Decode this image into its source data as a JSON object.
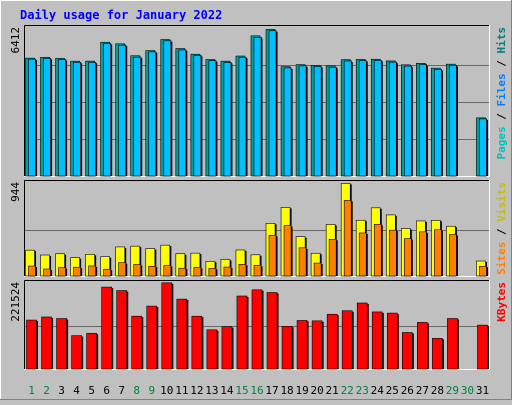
{
  "chart_data": {
    "type": "bar",
    "title": "Daily usage for January 2022",
    "categories": [
      "1",
      "2",
      "3",
      "4",
      "5",
      "6",
      "7",
      "8",
      "9",
      "10",
      "11",
      "12",
      "13",
      "14",
      "15",
      "16",
      "17",
      "18",
      "19",
      "20",
      "21",
      "22",
      "23",
      "24",
      "25",
      "26",
      "27",
      "28",
      "29",
      "30",
      "31"
    ],
    "weekend_categories": [
      "1",
      "2",
      "8",
      "9",
      "15",
      "16",
      "22",
      "23",
      "29",
      "30"
    ],
    "panels": [
      {
        "id": "top",
        "ymax_label": "6412",
        "ymax": 6412,
        "legend": [
          "Pages",
          "Files",
          "Hits"
        ],
        "series": [
          {
            "name": "Hits",
            "color": "#00a0a0",
            "values": [
              5106,
              5144,
              5095,
              4975,
              4977,
              5796,
              5727,
              5209,
              5432,
              5913,
              5522,
              5278,
              5045,
              4976,
              5197,
              6073,
              6351,
              4737,
              4826,
              4796,
              4771,
              5040,
              5049,
              5058,
              4984,
              4817,
              4883,
              4672,
              4845,
              0,
              2520
            ]
          },
          {
            "name": "Files",
            "color": "#00c0ff",
            "values": [
              5061,
              5094,
              5044,
              4922,
              4926,
              5742,
              5668,
              5148,
              5378,
              5856,
              5461,
              5226,
              4995,
              4917,
              5144,
              6007,
              6291,
              4682,
              4771,
              4743,
              4714,
              4983,
              4999,
              5011,
              4933,
              4763,
              4822,
              4619,
              4790,
              0,
              2474
            ]
          }
        ]
      },
      {
        "id": "middle",
        "ymax_label": "944",
        "ymax": 944,
        "legend": [
          "Sites",
          "Visits"
        ],
        "series": [
          {
            "name": "Visits",
            "color": "#ffff00",
            "values": [
              262,
              213,
              226,
              186,
              220,
              196,
              295,
              303,
              278,
              313,
              226,
              232,
              149,
              168,
              264,
              215,
              535,
              697,
              399,
              231,
              523,
              940,
              566,
              692,
              620,
              482,
              559,
              565,
              505,
              0,
              152
            ]
          },
          {
            "name": "Sites",
            "color": "#ff8000",
            "values": [
              101,
              71,
              85,
              89,
              102,
              68,
              136,
              116,
              99,
              106,
              79,
              87,
              77,
              91,
              118,
              108,
              413,
              511,
              286,
              131,
              372,
              767,
              437,
              524,
              465,
              379,
              448,
              469,
              421,
              0,
              99
            ]
          }
        ]
      },
      {
        "id": "bottom",
        "ymax_label": "221524",
        "ymax": 221524,
        "legend": [
          "KBytes"
        ],
        "series": [
          {
            "name": "KBytes",
            "color": "#ff0000",
            "values": [
              126000,
              134000,
              130000,
              86000,
              92000,
              211000,
              202000,
              136000,
              162000,
              222000,
              180000,
              136000,
              101000,
              109000,
              188000,
              204000,
              197000,
              110000,
              125000,
              124000,
              141000,
              150000,
              170000,
              147000,
              144000,
              94000,
              120000,
              79000,
              130000,
              0,
              113000
            ]
          }
        ]
      }
    ],
    "colors": {
      "background": "#c0c0c0",
      "title": "#0000ff",
      "pages": "#00c0c0",
      "files": "#0080ff",
      "hits": "#008080",
      "sites": "#ff8000",
      "visits": "#c0c000",
      "kbytes": "#ff0000",
      "weekday_label": "#000000",
      "weekend_label": "#008040"
    }
  }
}
